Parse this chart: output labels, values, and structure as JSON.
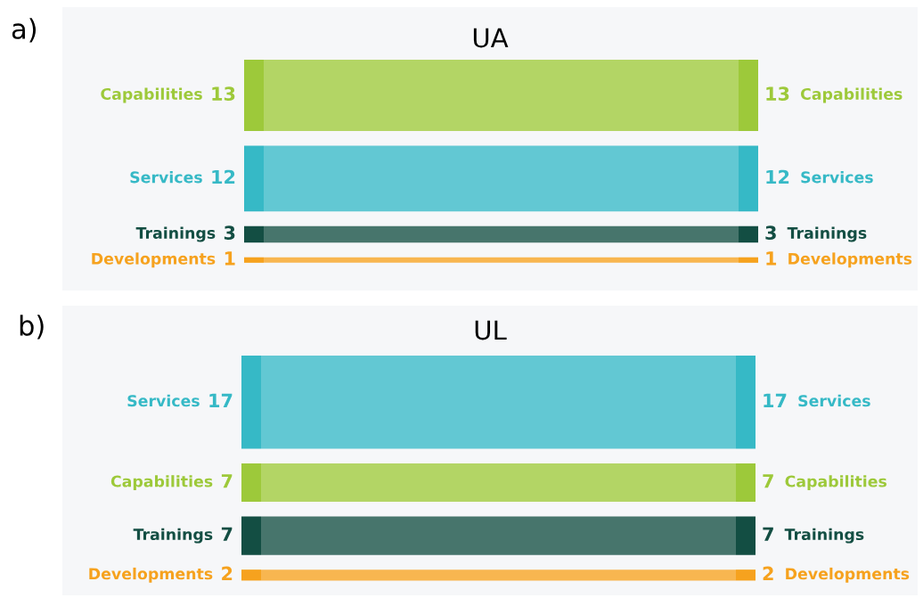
{
  "chart_data": [
    {
      "type": "other",
      "title": "UA",
      "annotations": [
        "a)"
      ],
      "data_labels": true,
      "categories": [
        "Capabilities",
        "Services",
        "Trainings",
        "Developments"
      ],
      "series": [
        {
          "values": [
            13,
            12,
            3,
            1
          ]
        },
        {
          "values": [
            13,
            12,
            3,
            1
          ]
        }
      ],
      "colors": [
        "#9dc93a",
        "#36b9c6",
        "#134e43",
        "#f6a21e"
      ]
    },
    {
      "type": "other",
      "title": "UL",
      "annotations": [
        "b)"
      ],
      "data_labels": true,
      "categories": [
        "Services",
        "Capabilities",
        "Trainings",
        "Developments"
      ],
      "series": [
        {
          "values": [
            17,
            7,
            7,
            2
          ]
        },
        {
          "values": [
            17,
            7,
            7,
            2
          ]
        }
      ],
      "colors": [
        "#36b9c6",
        "#9dc93a",
        "#134e43",
        "#f6a21e"
      ]
    }
  ]
}
